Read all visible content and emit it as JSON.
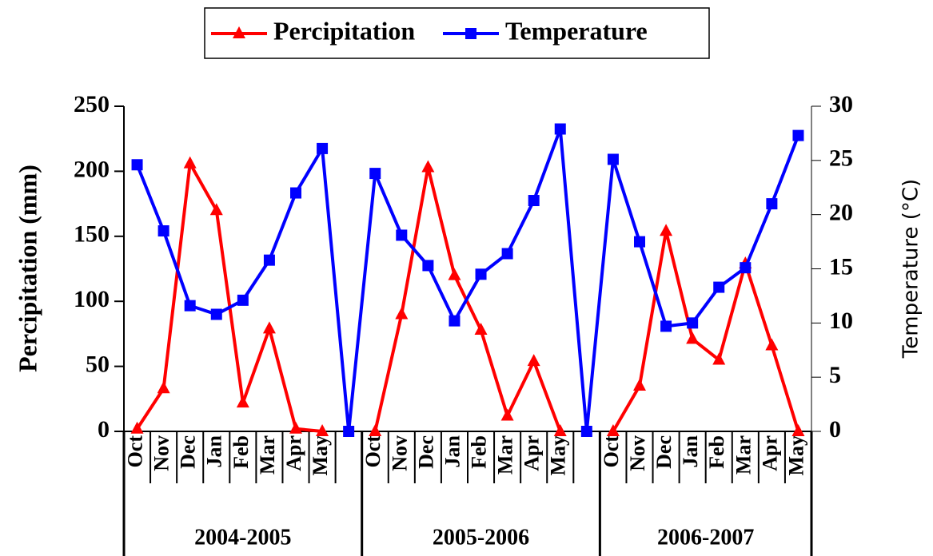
{
  "chart_data": {
    "type": "line",
    "categories": [
      "Oct",
      "Nov",
      "Dec",
      "Jan",
      "Feb",
      "Mar",
      "Apr",
      "May",
      null,
      "Oct",
      "Nov",
      "Dec",
      "Jan",
      "Feb",
      "Mar",
      "Apr",
      "May",
      null,
      "Oct",
      "Nov",
      "Dec",
      "Jan",
      "Feb",
      "Mar",
      "Apr",
      "May"
    ],
    "groups": [
      "2004-2005",
      "2005-2006",
      "2006-2007"
    ],
    "y_label": "Percipitation (mm)",
    "y2_label": "Temperature (°C)",
    "ylim": [
      0,
      250
    ],
    "yticks": [
      0,
      50,
      100,
      150,
      200,
      250
    ],
    "y2lim": [
      0,
      30
    ],
    "y2ticks": [
      0,
      5,
      10,
      15,
      20,
      25,
      30
    ],
    "legend": "top",
    "series": [
      {
        "name": "Percipitation",
        "color": "#ff0000",
        "marker": "triangle",
        "values": [
          2,
          33,
          206,
          170,
          22,
          79,
          2,
          0,
          null,
          0,
          90,
          203,
          120,
          78,
          12,
          54,
          0,
          null,
          0,
          35,
          154,
          71,
          55,
          129,
          66,
          0
        ]
      },
      {
        "name": "Temperature",
        "color": "#0000ff",
        "marker": "square",
        "axis": "y2",
        "values": [
          24.6,
          18.5,
          11.6,
          10.8,
          12.1,
          15.8,
          22.0,
          26.1,
          0,
          23.8,
          18.1,
          15.3,
          10.2,
          14.5,
          16.4,
          21.3,
          27.9,
          0,
          25.1,
          17.5,
          9.7,
          10.0,
          13.3,
          15.1,
          21.0,
          27.3
        ]
      }
    ]
  }
}
